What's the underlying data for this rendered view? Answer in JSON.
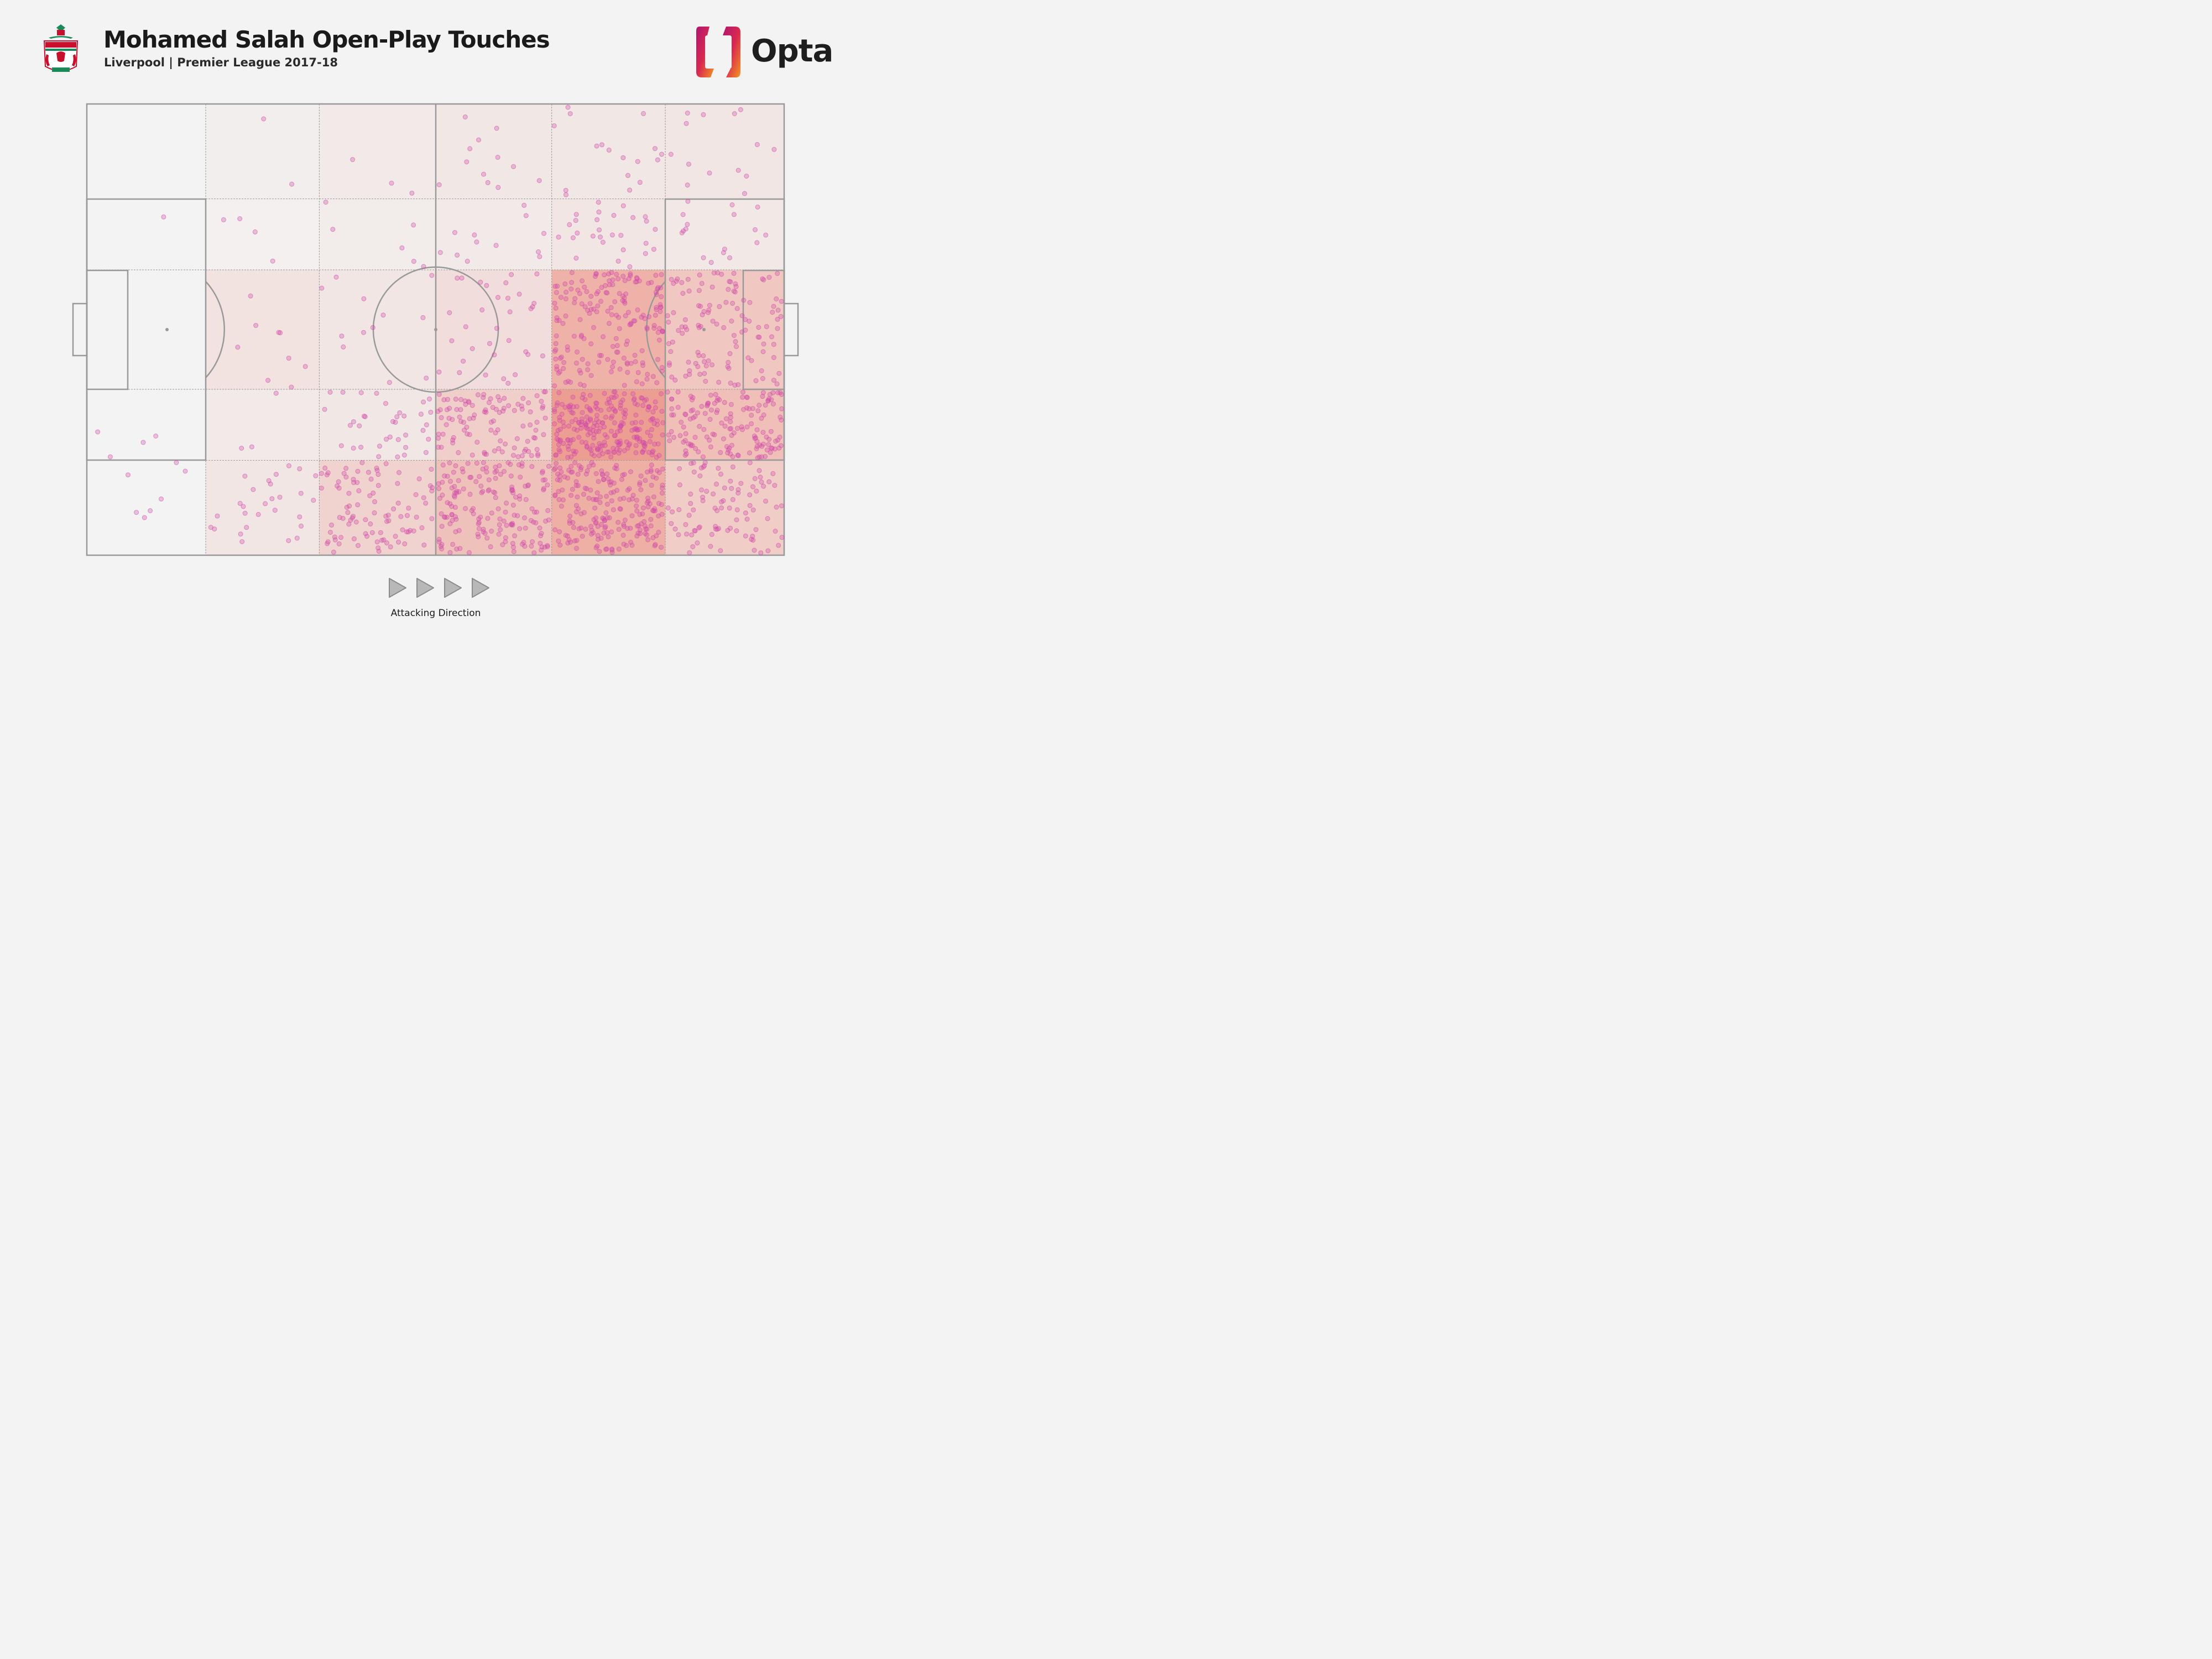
{
  "header": {
    "title": "Mohamed Salah Open-Play Touches",
    "subtitle": "Liverpool | Premier League 2017-18",
    "team_crest_icon": "liverpool-crest-icon",
    "brand": "Opta",
    "brand_icon": "opta-logo-icon"
  },
  "footer": {
    "direction_label": "Attacking Direction",
    "direction_icon": "play-arrow-icon",
    "arrow_count": 4
  },
  "colors": {
    "background": "#f3f3f3",
    "pitch_lines": "#999999",
    "touch_dot": "#d04aa8",
    "zone_heat": "#e8503a",
    "opta_gradient": [
      "#c4197a",
      "#f28b20"
    ]
  },
  "chart_data": {
    "type": "scatter",
    "title": "Mohamed Salah Open-Play Touches",
    "subtitle": "Liverpool | Premier League 2017-18",
    "pitch": {
      "length": 105,
      "width": 68,
      "attacking_direction": "left-to-right",
      "zone_columns": 6,
      "zone_rows": 5,
      "column_edges_m": [
        0,
        17.9,
        35,
        52.5,
        70,
        87.1,
        105
      ],
      "row_edges_m": [
        0,
        14.3,
        25,
        43,
        53.7,
        68
      ]
    },
    "zones": {
      "heat": [
        [
          0.0,
          0.03,
          0.05,
          0.07,
          0.07,
          0.08
        ],
        [
          0.0,
          0.02,
          0.04,
          0.05,
          0.08,
          0.06
        ],
        [
          0.0,
          0.1,
          0.08,
          0.13,
          0.4,
          0.27
        ],
        [
          0.0,
          0.05,
          0.07,
          0.22,
          0.52,
          0.32
        ],
        [
          0.0,
          0.08,
          0.2,
          0.3,
          0.42,
          0.23
        ]
      ],
      "counts": [
        [
          0,
          2,
          3,
          12,
          17,
          14
        ],
        [
          1,
          4,
          6,
          12,
          28,
          17
        ],
        [
          0,
          9,
          12,
          33,
          190,
          120
        ],
        [
          4,
          3,
          36,
          105,
          245,
          150
        ],
        [
          7,
          28,
          95,
          175,
          220,
          95
        ]
      ]
    },
    "x_range_m": [
      0,
      105
    ],
    "y_range_m": [
      0,
      68
    ],
    "legend": "none",
    "grid": true
  }
}
